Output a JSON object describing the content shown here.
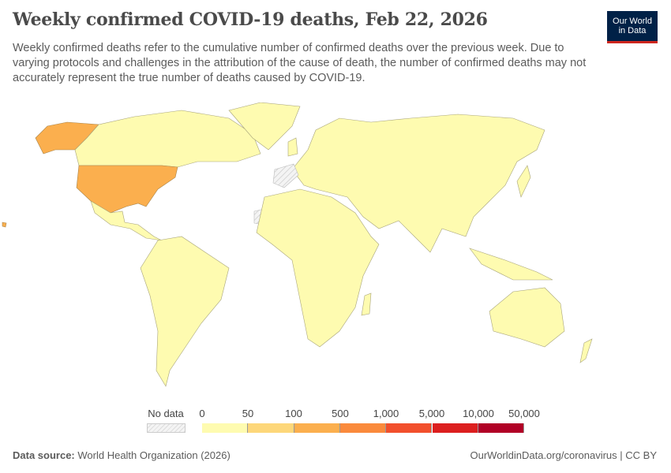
{
  "title": "Weekly confirmed COVID-19 deaths, Feb 22, 2026",
  "subtitle": "Weekly confirmed deaths refer to the cumulative number of confirmed deaths over the previous week. Due to varying protocols and challenges in the attribution of the cause of death, the number of confirmed deaths may not accurately represent the true number of deaths caused by COVID-19.",
  "logo": {
    "line1": "Our World",
    "line2": "in Data"
  },
  "legend": {
    "no_data_label": "No data",
    "bins": [
      {
        "from": "0",
        "to": "50",
        "color": "#fefbb0"
      },
      {
        "from": "50",
        "to": "100",
        "color": "#fdd77a"
      },
      {
        "from": "100",
        "to": "500",
        "color": "#fbaf4e"
      },
      {
        "from": "500",
        "to": "1,000",
        "color": "#fa8a3c"
      },
      {
        "from": "1,000",
        "to": "5,000",
        "color": "#f24f2c"
      },
      {
        "from": "5,000",
        "to": "10,000",
        "color": "#dc1f1f"
      },
      {
        "from": "10,000",
        "to": "50,000",
        "color": "#b10026"
      }
    ],
    "ticks": [
      "0",
      "50",
      "100",
      "500",
      "1,000",
      "5,000",
      "10,000",
      "50,000"
    ]
  },
  "map_colors": {
    "default": "#fefbb0",
    "united_states": "#fbaf4e",
    "no_data": "hatched"
  },
  "footer": {
    "source_label": "Data source:",
    "source": "World Health Organization (2026)",
    "credit": "OurWorldinData.org/coronavirus | CC BY"
  }
}
